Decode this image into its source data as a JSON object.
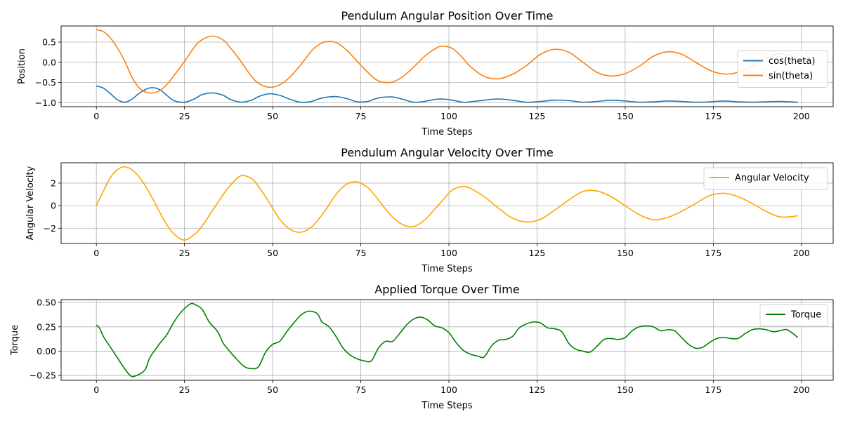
{
  "chart_data": [
    {
      "type": "line",
      "title": "Pendulum Angular Position Over Time",
      "xlabel": "Time Steps",
      "ylabel": "Position",
      "xlim": [
        -10,
        209
      ],
      "ylim": [
        -1.1,
        0.9
      ],
      "xticks": [
        0,
        25,
        50,
        75,
        100,
        125,
        150,
        175,
        200
      ],
      "yticks": [
        -1.0,
        -0.5,
        0.0,
        0.5
      ],
      "ytick_labels": [
        "−1.0",
        "−0.5",
        "0.0",
        "0.5"
      ],
      "grid": true,
      "legend_position": "right",
      "series": [
        {
          "name": "cos(theta)",
          "color": "#1f77b4",
          "x": [
            0,
            2,
            4,
            6,
            8,
            10,
            12,
            14,
            16,
            18,
            20,
            22,
            25,
            28,
            30,
            33,
            36,
            38,
            41,
            44,
            46,
            49,
            52,
            55,
            58,
            61,
            63,
            65,
            68,
            71,
            74,
            77,
            79,
            81,
            84,
            87,
            90,
            93,
            96,
            98,
            101,
            104,
            106,
            110,
            114,
            118,
            122,
            126,
            130,
            134,
            138,
            142,
            146,
            150,
            154,
            158,
            162,
            166,
            170,
            174,
            178,
            182,
            186,
            190,
            194,
            199
          ],
          "y": [
            -0.59,
            -0.64,
            -0.78,
            -0.93,
            -0.99,
            -0.92,
            -0.78,
            -0.67,
            -0.63,
            -0.68,
            -0.82,
            -0.95,
            -0.99,
            -0.9,
            -0.8,
            -0.76,
            -0.82,
            -0.92,
            -0.99,
            -0.94,
            -0.85,
            -0.78,
            -0.82,
            -0.92,
            -0.99,
            -0.97,
            -0.91,
            -0.87,
            -0.85,
            -0.9,
            -0.98,
            -0.97,
            -0.91,
            -0.87,
            -0.86,
            -0.92,
            -0.99,
            -0.97,
            -0.92,
            -0.91,
            -0.94,
            -0.99,
            -0.98,
            -0.94,
            -0.91,
            -0.94,
            -0.99,
            -0.97,
            -0.94,
            -0.95,
            -0.99,
            -0.97,
            -0.94,
            -0.96,
            -0.99,
            -0.98,
            -0.96,
            -0.97,
            -0.99,
            -0.98,
            -0.96,
            -0.98,
            -0.99,
            -0.98,
            -0.97,
            -0.99
          ]
        },
        {
          "name": "sin(theta)",
          "color": "#ff7f0e",
          "x": [
            0,
            2,
            4,
            6,
            8,
            10,
            12,
            14,
            16,
            18,
            20,
            22,
            25,
            28,
            30,
            33,
            36,
            38,
            41,
            44,
            46,
            49,
            52,
            55,
            58,
            61,
            63,
            65,
            68,
            71,
            74,
            77,
            79,
            81,
            84,
            87,
            90,
            93,
            96,
            98,
            101,
            104,
            106,
            110,
            114,
            118,
            122,
            126,
            130,
            134,
            138,
            142,
            146,
            150,
            154,
            158,
            162,
            166,
            170,
            174,
            178,
            182,
            186,
            190,
            194,
            199
          ],
          "y": [
            0.81,
            0.76,
            0.6,
            0.35,
            0.04,
            -0.35,
            -0.62,
            -0.74,
            -0.76,
            -0.7,
            -0.55,
            -0.33,
            0.02,
            0.4,
            0.56,
            0.65,
            0.55,
            0.36,
            0.02,
            -0.35,
            -0.52,
            -0.62,
            -0.56,
            -0.36,
            -0.06,
            0.28,
            0.43,
            0.51,
            0.49,
            0.3,
            0.02,
            -0.25,
            -0.41,
            -0.49,
            -0.49,
            -0.35,
            -0.12,
            0.14,
            0.33,
            0.4,
            0.34,
            0.1,
            -0.1,
            -0.35,
            -0.41,
            -0.3,
            -0.08,
            0.2,
            0.32,
            0.25,
            0.0,
            -0.25,
            -0.34,
            -0.28,
            -0.1,
            0.15,
            0.26,
            0.2,
            0.0,
            -0.2,
            -0.29,
            -0.25,
            -0.09,
            0.1,
            0.21,
            0.11
          ]
        }
      ]
    },
    {
      "type": "line",
      "title": "Pendulum Angular Velocity Over Time",
      "xlabel": "Time Steps",
      "ylabel": "Angular Velocity",
      "xlim": [
        -10,
        209
      ],
      "ylim": [
        -3.35,
        3.8
      ],
      "xticks": [
        0,
        25,
        50,
        75,
        100,
        125,
        150,
        175,
        200
      ],
      "yticks": [
        -2,
        0,
        2
      ],
      "ytick_labels": [
        "−2",
        "0",
        "2"
      ],
      "grid": true,
      "legend_position": "top-right",
      "series": [
        {
          "name": "Angular Velocity",
          "color": "#ffa500",
          "x": [
            0,
            2,
            4,
            6,
            8,
            10,
            12,
            14,
            16,
            18,
            20,
            22,
            25,
            28,
            30,
            33,
            36,
            38,
            41,
            44,
            46,
            49,
            52,
            55,
            58,
            61,
            63,
            65,
            68,
            71,
            74,
            77,
            79,
            81,
            84,
            87,
            90,
            93,
            96,
            98,
            101,
            104,
            106,
            110,
            114,
            118,
            122,
            126,
            130,
            134,
            138,
            142,
            146,
            150,
            154,
            158,
            162,
            166,
            170,
            174,
            178,
            182,
            186,
            190,
            194,
            199
          ],
          "y": [
            0.0,
            1.3,
            2.5,
            3.2,
            3.45,
            3.2,
            2.6,
            1.7,
            0.6,
            -0.6,
            -1.7,
            -2.5,
            -3.05,
            -2.5,
            -1.8,
            -0.4,
            1.0,
            1.8,
            2.65,
            2.4,
            1.7,
            0.3,
            -1.2,
            -2.1,
            -2.35,
            -1.9,
            -1.2,
            -0.4,
            1.0,
            1.9,
            2.1,
            1.6,
            0.9,
            0.1,
            -1.0,
            -1.7,
            -1.85,
            -1.3,
            -0.3,
            0.4,
            1.4,
            1.7,
            1.55,
            0.8,
            -0.2,
            -1.1,
            -1.45,
            -1.2,
            -0.4,
            0.5,
            1.25,
            1.3,
            0.8,
            0.0,
            -0.8,
            -1.25,
            -1.05,
            -0.5,
            0.2,
            0.9,
            1.1,
            0.8,
            0.2,
            -0.5,
            -1.0,
            -0.9
          ]
        }
      ]
    },
    {
      "type": "line",
      "title": "Applied Torque Over Time",
      "xlabel": "Time Steps",
      "ylabel": "Torque",
      "xlim": [
        -10,
        209
      ],
      "ylim": [
        -0.3,
        0.53
      ],
      "xticks": [
        0,
        25,
        50,
        75,
        100,
        125,
        150,
        175,
        200
      ],
      "yticks": [
        -0.25,
        0.0,
        0.25,
        0.5
      ],
      "ytick_labels": [
        "−0.25",
        "0.00",
        "0.25",
        "0.50"
      ],
      "grid": true,
      "legend_position": "top-right",
      "series": [
        {
          "name": "Torque",
          "color": "#008000",
          "x": [
            0,
            1,
            2,
            4,
            6,
            8,
            10,
            12,
            13,
            14,
            15,
            16,
            17,
            18,
            20,
            22,
            24,
            26,
            27,
            28,
            30,
            32,
            34,
            35,
            36,
            38,
            40,
            42,
            44,
            46,
            48,
            50,
            52,
            54,
            56,
            58,
            60,
            62,
            63,
            64,
            66,
            68,
            70,
            72,
            74,
            76,
            78,
            80,
            82,
            84,
            86,
            88,
            90,
            92,
            94,
            96,
            98,
            100,
            102,
            104,
            106,
            108,
            110,
            112,
            114,
            116,
            118,
            120,
            122,
            124,
            126,
            128,
            130,
            132,
            134,
            136,
            138,
            140,
            142,
            144,
            146,
            148,
            150,
            152,
            154,
            156,
            158,
            160,
            162,
            164,
            166,
            168,
            170,
            172,
            174,
            176,
            178,
            180,
            182,
            184,
            186,
            188,
            190,
            192,
            194,
            196,
            199
          ],
          "y": [
            0.27,
            0.23,
            0.15,
            0.04,
            -0.07,
            -0.18,
            -0.26,
            -0.24,
            -0.22,
            -0.18,
            -0.08,
            -0.02,
            0.03,
            0.08,
            0.17,
            0.3,
            0.4,
            0.47,
            0.49,
            0.48,
            0.43,
            0.3,
            0.22,
            0.16,
            0.08,
            -0.01,
            -0.09,
            -0.16,
            -0.18,
            -0.16,
            -0.01,
            0.07,
            0.1,
            0.2,
            0.29,
            0.37,
            0.41,
            0.4,
            0.37,
            0.3,
            0.25,
            0.15,
            0.03,
            -0.04,
            -0.08,
            -0.1,
            -0.1,
            0.03,
            0.1,
            0.1,
            0.18,
            0.27,
            0.33,
            0.35,
            0.32,
            0.26,
            0.24,
            0.19,
            0.09,
            0.01,
            -0.03,
            -0.05,
            -0.06,
            0.05,
            0.11,
            0.12,
            0.15,
            0.24,
            0.28,
            0.3,
            0.29,
            0.24,
            0.23,
            0.2,
            0.08,
            0.02,
            0.0,
            -0.01,
            0.05,
            0.12,
            0.13,
            0.12,
            0.14,
            0.21,
            0.25,
            0.26,
            0.25,
            0.21,
            0.22,
            0.21,
            0.14,
            0.07,
            0.03,
            0.04,
            0.09,
            0.13,
            0.14,
            0.13,
            0.13,
            0.18,
            0.22,
            0.23,
            0.22,
            0.2,
            0.21,
            0.22,
            0.14
          ]
        }
      ]
    }
  ]
}
